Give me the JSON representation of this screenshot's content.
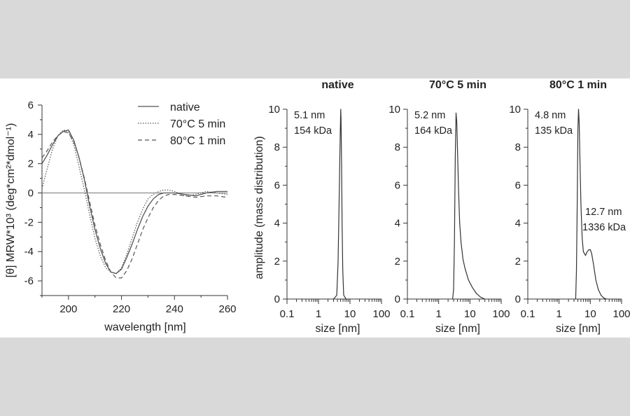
{
  "chart_data": [
    {
      "type": "line",
      "xlabel": "wavelength [nm]",
      "ylabel": "[θ] MRW*10³ (deg*cm²*dmol⁻¹)",
      "xlim": [
        190,
        260
      ],
      "ylim": [
        -7,
        6
      ],
      "xticks": [
        "200",
        "220",
        "240",
        "260"
      ],
      "yticks": [
        "6",
        "4",
        "2",
        "0",
        "-2",
        "-4",
        "-6"
      ],
      "zero_line": true,
      "legend_position": "top-right",
      "series": [
        {
          "name": "native",
          "style": "solid",
          "color": "#555555",
          "x": [
            190,
            192,
            194,
            196,
            198,
            200,
            202,
            204,
            206,
            208,
            210,
            212,
            214,
            216,
            218,
            220,
            222,
            224,
            226,
            228,
            230,
            232,
            234,
            236,
            238,
            240,
            244,
            248,
            252,
            256,
            260
          ],
          "y": [
            2.0,
            2.6,
            3.3,
            3.9,
            4.2,
            4.3,
            3.6,
            2.4,
            0.9,
            -0.9,
            -2.5,
            -3.8,
            -4.8,
            -5.4,
            -5.5,
            -5.2,
            -4.4,
            -3.5,
            -2.5,
            -1.6,
            -0.9,
            -0.4,
            -0.1,
            0.0,
            0.0,
            0.0,
            -0.1,
            -0.2,
            0.0,
            0.1,
            0.1
          ]
        },
        {
          "name": "70°C 5 min",
          "style": "dotted",
          "color": "#555555",
          "x": [
            190,
            192,
            194,
            196,
            198,
            200,
            202,
            204,
            206,
            208,
            210,
            212,
            214,
            216,
            218,
            220,
            222,
            224,
            226,
            228,
            230,
            232,
            234,
            236,
            238,
            240,
            244,
            248,
            252,
            256,
            260
          ],
          "y": [
            0.3,
            1.7,
            3.0,
            3.9,
            4.3,
            4.2,
            3.3,
            1.8,
            0.2,
            -1.5,
            -3.1,
            -4.3,
            -5.1,
            -5.4,
            -5.5,
            -5.1,
            -4.2,
            -3.1,
            -2.0,
            -1.1,
            -0.4,
            -0.1,
            0.1,
            0.2,
            0.2,
            0.1,
            -0.2,
            -0.1,
            0.1,
            0.0,
            -0.1
          ]
        },
        {
          "name": "80°C 1 min",
          "style": "dashed",
          "color": "#555555",
          "x": [
            190,
            192,
            194,
            196,
            198,
            200,
            202,
            204,
            206,
            208,
            210,
            212,
            214,
            216,
            218,
            220,
            222,
            224,
            226,
            228,
            230,
            232,
            234,
            236,
            238,
            240,
            244,
            248,
            252,
            256,
            260
          ],
          "y": [
            2.4,
            2.9,
            3.5,
            3.9,
            4.2,
            4.1,
            3.5,
            2.4,
            1.0,
            -0.6,
            -2.2,
            -3.5,
            -4.6,
            -5.4,
            -5.8,
            -5.8,
            -5.3,
            -4.5,
            -3.5,
            -2.5,
            -1.7,
            -1.0,
            -0.5,
            -0.2,
            -0.1,
            -0.1,
            -0.2,
            -0.3,
            -0.2,
            -0.2,
            -0.3
          ]
        }
      ]
    },
    {
      "type": "line",
      "title": "native",
      "xlabel": "size [nm]",
      "ylabel": "amplitude (mass distribution)",
      "xscale": "log",
      "xlim": [
        0.1,
        100
      ],
      "ylim": [
        0,
        10
      ],
      "xticks": [
        "0.1",
        "1",
        "10",
        "100"
      ],
      "yticks": [
        "0",
        "2",
        "4",
        "6",
        "8",
        "10"
      ],
      "annotations": [
        "5.1 nm",
        "154 kDa"
      ],
      "series": [
        {
          "x": [
            3.0,
            3.8,
            4.2,
            4.5,
            4.8,
            5.0,
            5.1,
            5.2,
            5.4,
            5.6,
            5.9,
            6.3,
            7.5
          ],
          "y": [
            0,
            0.2,
            2.0,
            5.0,
            8.0,
            9.5,
            10.0,
            9.5,
            7.0,
            4.0,
            1.5,
            0.2,
            0
          ]
        }
      ]
    },
    {
      "type": "line",
      "title": "70°C 5 min",
      "xlabel": "size [nm]",
      "xscale": "log",
      "xlim": [
        0.1,
        100
      ],
      "ylim": [
        0,
        10
      ],
      "xticks": [
        "0.1",
        "1",
        "10",
        "100"
      ],
      "yticks": [
        "0",
        "2",
        "4",
        "6",
        "8",
        "10"
      ],
      "annotations": [
        "5.2 nm",
        "164 kDa"
      ],
      "series": [
        {
          "x": [
            2.8,
            3.0,
            3.2,
            3.4,
            3.6,
            3.8,
            4.0,
            4.3,
            4.7,
            5.2,
            6.0,
            7.0,
            9.0,
            12.0,
            16.0,
            22.0,
            30.0
          ],
          "y": [
            0,
            0.5,
            3.0,
            7.5,
            9.8,
            9.3,
            7.8,
            5.8,
            4.0,
            3.0,
            2.1,
            1.6,
            1.0,
            0.6,
            0.3,
            0.1,
            0
          ]
        }
      ]
    },
    {
      "type": "line",
      "title": "80°C 1 min",
      "xlabel": "size [nm]",
      "xscale": "log",
      "xlim": [
        0.1,
        100
      ],
      "ylim": [
        0,
        10
      ],
      "xticks": [
        "0.1",
        "1",
        "10",
        "100"
      ],
      "yticks": [
        "0",
        "2",
        "4",
        "6",
        "8",
        "10"
      ],
      "annotations": [
        "4.8 nm",
        "135 kDa",
        "12.7 nm",
        "1336 kDa"
      ],
      "series": [
        {
          "x": [
            3.4,
            3.6,
            3.8,
            4.0,
            4.2,
            4.4,
            4.7,
            5.0,
            5.5,
            6.0,
            7.0,
            8.0,
            9.0,
            10.0,
            11.0,
            12.7,
            15.0,
            18.0,
            22.0,
            27.0,
            33.0
          ],
          "y": [
            0,
            1.5,
            5.0,
            9.0,
            10.0,
            9.3,
            7.0,
            5.0,
            3.2,
            2.5,
            2.3,
            2.5,
            2.6,
            2.6,
            2.4,
            1.8,
            1.0,
            0.5,
            0.2,
            0.05,
            0
          ]
        }
      ]
    }
  ]
}
